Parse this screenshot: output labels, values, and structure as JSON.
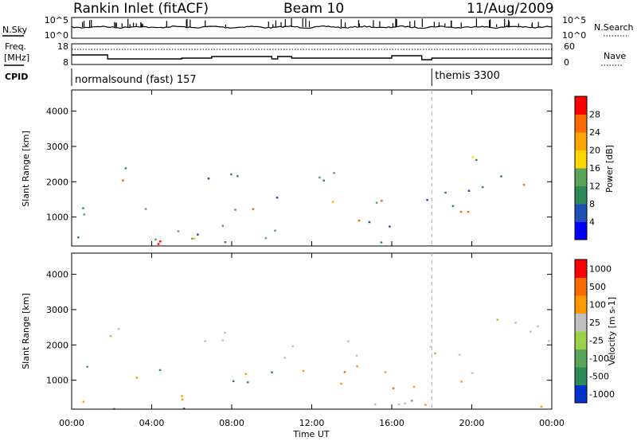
{
  "header": {
    "station": "Rankin Inlet (fitACF)",
    "beam": "Beam 10",
    "date": "11/Aug/2009"
  },
  "noise_panel": {
    "left_label": "N.Sky",
    "right_label": "N.Search",
    "left_ticks": [
      "10^5",
      "10^0"
    ],
    "right_ticks": [
      "10^5",
      "10^0"
    ]
  },
  "freq_panel": {
    "left_label_1": "Freq.",
    "left_label_2": "[MHz]",
    "right_label": "Nave",
    "left_ticks": [
      "18",
      "8"
    ],
    "right_ticks": [
      "60",
      "0"
    ]
  },
  "cpid_panel": {
    "label": "CPID",
    "programs": [
      {
        "name": "normalsound (fast) 157",
        "start_hour": 0
      },
      {
        "name": "themis 3300",
        "start_hour": 18
      }
    ]
  },
  "colors": {
    "power_scale": [
      "#0000ff",
      "#1f4fb4",
      "#2e8b57",
      "#5aa55a",
      "#ffd700",
      "#ffa500",
      "#ff6a00",
      "#ff0000"
    ],
    "velocity_scale": [
      "#0033cc",
      "#2e8b57",
      "#5aa55a",
      "#9ad34a",
      "#c0c0c0",
      "#ff9900",
      "#ff6a00",
      "#ff0000"
    ]
  },
  "chart_data": [
    {
      "type": "heatmap",
      "name": "power",
      "ylabel": "Slant Range [km]",
      "y_ticks": [
        "1000",
        "2000",
        "3000",
        "4000"
      ],
      "ylim": [
        180,
        4600
      ],
      "colorbar_label": "Power [dB]",
      "colorbar_ticks": [
        "4",
        "8",
        "12",
        "16",
        "20",
        "24",
        "28"
      ],
      "clim": [
        0,
        30
      ]
    },
    {
      "type": "heatmap",
      "name": "velocity",
      "ylabel": "Slant Range [km]",
      "y_ticks": [
        "1000",
        "2000",
        "3000",
        "4000"
      ],
      "ylim": [
        180,
        4600
      ],
      "colorbar_label": "Velocity [m s-1]",
      "colorbar_ticks": [
        "1000",
        "500",
        "100",
        "25",
        "-25",
        "-100",
        "-500",
        "-1000"
      ]
    }
  ],
  "x_axis": {
    "label": "Time UT",
    "ticks": [
      "00:00",
      "04:00",
      "08:00",
      "12:00",
      "16:00",
      "20:00",
      "00:00"
    ],
    "xlim": [
      0,
      24
    ]
  }
}
